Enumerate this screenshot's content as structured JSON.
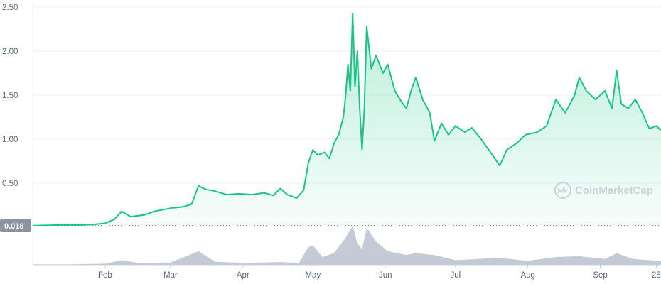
{
  "watermark": {
    "text": "CoinMarketCap",
    "icon": "coinmarketcap-logo-icon"
  },
  "baseline_badge": {
    "label": "0.018",
    "value": 0.018
  },
  "colors": {
    "line": "#16c784",
    "area_top": "#16c784",
    "volume": "#c5cbd6",
    "grid": "#eff2f5",
    "axis_text": "#58667e",
    "badge_bg": "#8c93a0"
  },
  "chart_data": {
    "type": "area",
    "title": "",
    "xlabel": "",
    "ylabel": "",
    "ylim": [
      0,
      2.5
    ],
    "grid": true,
    "y_ticks": [
      "0.50",
      "1.00",
      "1.50",
      "2.00",
      "2.50"
    ],
    "y_tick_values": [
      0.5,
      1.0,
      1.5,
      2.0,
      2.5
    ],
    "x_ticks": [
      "Feb",
      "Mar",
      "Apr",
      "May",
      "Jun",
      "Jul",
      "Aug",
      "Sep",
      "25"
    ],
    "x_tick_dates": [
      "2021-02-01",
      "2021-03-01",
      "2021-04-01",
      "2021-05-01",
      "2021-06-01",
      "2021-07-01",
      "2021-08-01",
      "2021-09-01",
      "2021-09-25"
    ],
    "x_range": [
      "2021-01-01",
      "2021-09-27"
    ],
    "series": [
      {
        "kind": "price",
        "points": [
          [
            "2021-01-01",
            0.018
          ],
          [
            "2021-01-05",
            0.02
          ],
          [
            "2021-01-12",
            0.025
          ],
          [
            "2021-01-20",
            0.025
          ],
          [
            "2021-01-27",
            0.03
          ],
          [
            "2021-02-01",
            0.045
          ],
          [
            "2021-02-05",
            0.09
          ],
          [
            "2021-02-08",
            0.18
          ],
          [
            "2021-02-12",
            0.12
          ],
          [
            "2021-02-18",
            0.14
          ],
          [
            "2021-02-22",
            0.18
          ],
          [
            "2021-02-26",
            0.2
          ],
          [
            "2021-03-02",
            0.22
          ],
          [
            "2021-03-06",
            0.23
          ],
          [
            "2021-03-10",
            0.26
          ],
          [
            "2021-03-13",
            0.47
          ],
          [
            "2021-03-16",
            0.43
          ],
          [
            "2021-03-20",
            0.41
          ],
          [
            "2021-03-25",
            0.37
          ],
          [
            "2021-03-30",
            0.38
          ],
          [
            "2021-04-05",
            0.37
          ],
          [
            "2021-04-10",
            0.39
          ],
          [
            "2021-04-14",
            0.36
          ],
          [
            "2021-04-17",
            0.44
          ],
          [
            "2021-04-20",
            0.37
          ],
          [
            "2021-04-24",
            0.33
          ],
          [
            "2021-04-27",
            0.42
          ],
          [
            "2021-04-29",
            0.73
          ],
          [
            "2021-05-01",
            0.88
          ],
          [
            "2021-05-03",
            0.82
          ],
          [
            "2021-05-06",
            0.85
          ],
          [
            "2021-05-08",
            0.78
          ],
          [
            "2021-05-10",
            0.95
          ],
          [
            "2021-05-12",
            1.05
          ],
          [
            "2021-05-14",
            1.25
          ],
          [
            "2021-05-15",
            1.5
          ],
          [
            "2021-05-16",
            1.85
          ],
          [
            "2021-05-17",
            1.55
          ],
          [
            "2021-05-18",
            2.43
          ],
          [
            "2021-05-19",
            1.6
          ],
          [
            "2021-05-20",
            2.0
          ],
          [
            "2021-05-21",
            1.35
          ],
          [
            "2021-05-22",
            0.88
          ],
          [
            "2021-05-23",
            1.35
          ],
          [
            "2021-05-24",
            2.28
          ],
          [
            "2021-05-26",
            1.8
          ],
          [
            "2021-05-28",
            1.95
          ],
          [
            "2021-05-31",
            1.75
          ],
          [
            "2021-06-02",
            1.85
          ],
          [
            "2021-06-05",
            1.55
          ],
          [
            "2021-06-08",
            1.42
          ],
          [
            "2021-06-10",
            1.35
          ],
          [
            "2021-06-12",
            1.55
          ],
          [
            "2021-06-14",
            1.7
          ],
          [
            "2021-06-17",
            1.45
          ],
          [
            "2021-06-20",
            1.3
          ],
          [
            "2021-06-22",
            0.98
          ],
          [
            "2021-06-25",
            1.18
          ],
          [
            "2021-06-28",
            1.05
          ],
          [
            "2021-07-01",
            1.15
          ],
          [
            "2021-07-05",
            1.08
          ],
          [
            "2021-07-08",
            1.13
          ],
          [
            "2021-07-12",
            1.0
          ],
          [
            "2021-07-16",
            0.85
          ],
          [
            "2021-07-20",
            0.7
          ],
          [
            "2021-07-23",
            0.88
          ],
          [
            "2021-07-27",
            0.95
          ],
          [
            "2021-07-31",
            1.05
          ],
          [
            "2021-08-05",
            1.08
          ],
          [
            "2021-08-09",
            1.15
          ],
          [
            "2021-08-13",
            1.45
          ],
          [
            "2021-08-17",
            1.3
          ],
          [
            "2021-08-21",
            1.5
          ],
          [
            "2021-08-23",
            1.7
          ],
          [
            "2021-08-26",
            1.55
          ],
          [
            "2021-08-30",
            1.45
          ],
          [
            "2021-09-03",
            1.55
          ],
          [
            "2021-09-06",
            1.35
          ],
          [
            "2021-09-08",
            1.78
          ],
          [
            "2021-09-10",
            1.4
          ],
          [
            "2021-09-13",
            1.35
          ],
          [
            "2021-09-16",
            1.45
          ],
          [
            "2021-09-19",
            1.3
          ],
          [
            "2021-09-22",
            1.12
          ],
          [
            "2021-09-25",
            1.15
          ],
          [
            "2021-09-27",
            1.1
          ]
        ]
      },
      {
        "kind": "volume",
        "points": [
          [
            "2021-01-01",
            0.01
          ],
          [
            "2021-01-15",
            0.01
          ],
          [
            "2021-02-01",
            0.03
          ],
          [
            "2021-02-08",
            0.12
          ],
          [
            "2021-02-15",
            0.05
          ],
          [
            "2021-03-01",
            0.06
          ],
          [
            "2021-03-13",
            0.35
          ],
          [
            "2021-03-20",
            0.08
          ],
          [
            "2021-04-01",
            0.05
          ],
          [
            "2021-04-17",
            0.07
          ],
          [
            "2021-04-25",
            0.05
          ],
          [
            "2021-04-29",
            0.45
          ],
          [
            "2021-05-01",
            0.5
          ],
          [
            "2021-05-05",
            0.2
          ],
          [
            "2021-05-10",
            0.3
          ],
          [
            "2021-05-15",
            0.7
          ],
          [
            "2021-05-18",
            1.0
          ],
          [
            "2021-05-20",
            0.55
          ],
          [
            "2021-05-22",
            0.4
          ],
          [
            "2021-05-24",
            0.95
          ],
          [
            "2021-05-28",
            0.6
          ],
          [
            "2021-06-02",
            0.35
          ],
          [
            "2021-06-10",
            0.25
          ],
          [
            "2021-06-14",
            0.3
          ],
          [
            "2021-06-22",
            0.25
          ],
          [
            "2021-07-01",
            0.12
          ],
          [
            "2021-07-20",
            0.18
          ],
          [
            "2021-08-01",
            0.1
          ],
          [
            "2021-08-13",
            0.2
          ],
          [
            "2021-08-23",
            0.22
          ],
          [
            "2021-09-03",
            0.15
          ],
          [
            "2021-09-08",
            0.3
          ],
          [
            "2021-09-15",
            0.15
          ],
          [
            "2021-09-27",
            0.1
          ]
        ]
      }
    ]
  }
}
